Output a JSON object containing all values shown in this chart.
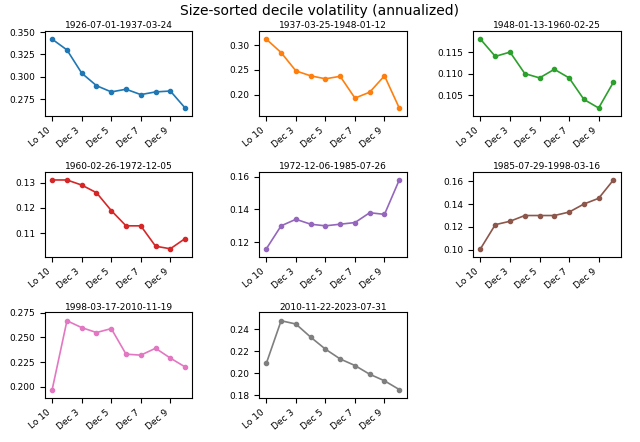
{
  "title": "Size-sorted decile volatility (annualized)",
  "x_labels_short": [
    "Lo 10",
    "Dec 3",
    "Dec 5",
    "Dec 7",
    "Dec 9"
  ],
  "short_indices": [
    0,
    2,
    4,
    6,
    8
  ],
  "subplots": [
    {
      "title": "1926-07-01-1937-03-24",
      "color": "#1f77b4",
      "values": [
        0.342,
        0.33,
        0.304,
        0.29,
        0.283,
        0.286,
        0.28,
        0.283,
        0.284,
        0.265
      ]
    },
    {
      "title": "1937-03-25-1948-01-12",
      "color": "#ff7f0e",
      "values": [
        0.312,
        0.285,
        0.248,
        0.238,
        0.232,
        0.237,
        0.193,
        0.205,
        0.238,
        0.173
      ]
    },
    {
      "title": "1948-01-13-1960-02-25",
      "color": "#2ca02c",
      "values": [
        0.118,
        0.114,
        0.115,
        0.11,
        0.109,
        0.111,
        0.109,
        0.104,
        0.102,
        0.108
      ]
    },
    {
      "title": "1960-02-26-1972-12-05",
      "color": "#d62728",
      "values": [
        0.131,
        0.131,
        0.129,
        0.126,
        0.119,
        0.113,
        0.113,
        0.105,
        0.104,
        0.108
      ]
    },
    {
      "title": "1972-12-06-1985-07-26",
      "color": "#9467bd",
      "values": [
        0.116,
        0.13,
        0.134,
        0.131,
        0.13,
        0.131,
        0.132,
        0.138,
        0.137,
        0.158
      ]
    },
    {
      "title": "1985-07-29-1998-03-16",
      "color": "#8c564b",
      "values": [
        0.101,
        0.122,
        0.125,
        0.13,
        0.13,
        0.13,
        0.133,
        0.14,
        0.145,
        0.161
      ]
    },
    {
      "title": "1998-03-17-2010-11-19",
      "color": "#e377c2",
      "values": [
        0.197,
        0.267,
        0.26,
        0.255,
        0.259,
        0.233,
        0.232,
        0.239,
        0.229,
        0.22
      ]
    },
    {
      "title": "2010-11-22-2023-07-31",
      "color": "#7f7f7f",
      "values": [
        0.209,
        0.248,
        0.245,
        0.233,
        0.222,
        0.213,
        0.207,
        0.199,
        0.193,
        0.185
      ]
    }
  ]
}
